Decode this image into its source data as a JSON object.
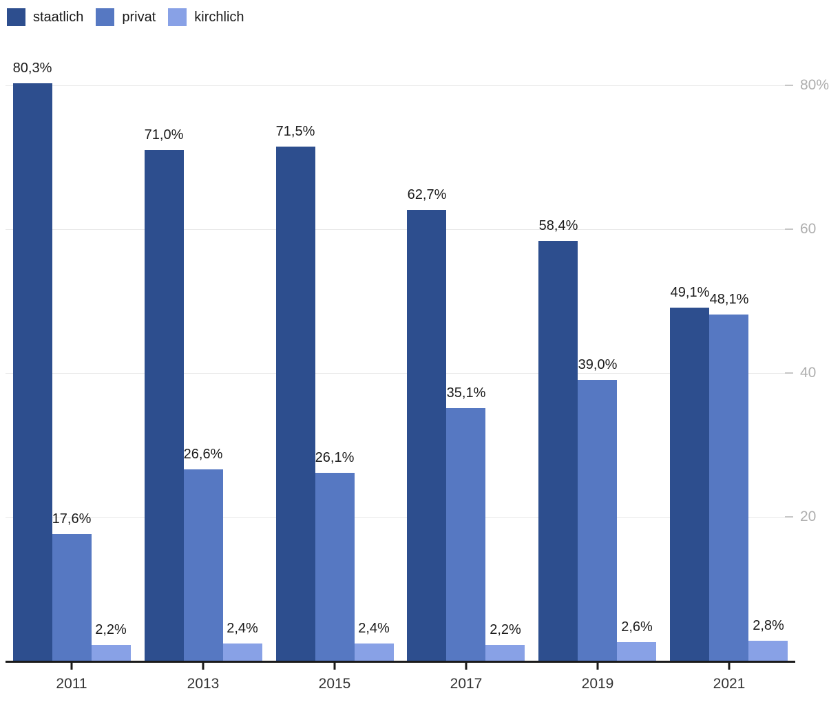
{
  "chart_data": {
    "type": "bar",
    "title": "",
    "xlabel": "",
    "ylabel": "",
    "categories": [
      "2011",
      "2013",
      "2015",
      "2017",
      "2019",
      "2021"
    ],
    "series": [
      {
        "name": "staatlich",
        "color": "#2d4e8e",
        "values": [
          80.3,
          71.0,
          71.5,
          62.7,
          58.4,
          49.1
        ],
        "labels": [
          "80,3%",
          "71,0%",
          "71,5%",
          "62,7%",
          "58,4%",
          "49,1%"
        ]
      },
      {
        "name": "privat",
        "color": "#5678c2",
        "values": [
          17.6,
          26.6,
          26.1,
          35.1,
          39.0,
          48.1
        ],
        "labels": [
          "17,6%",
          "26,6%",
          "26,1%",
          "35,1%",
          "39,0%",
          "48,1%"
        ]
      },
      {
        "name": "kirchlich",
        "color": "#88a1e6",
        "values": [
          2.2,
          2.4,
          2.4,
          2.2,
          2.6,
          2.8
        ],
        "labels": [
          "2,2%",
          "2,4%",
          "2,4%",
          "2,2%",
          "2,6%",
          "2,8%"
        ]
      }
    ],
    "y_axis": {
      "position": "right",
      "ticks": [
        20,
        40,
        60,
        80
      ],
      "tick_labels": [
        "20",
        "40",
        "60",
        "80%"
      ],
      "ylim": [
        0,
        86
      ],
      "grid": true
    },
    "legend_position": "top-left",
    "colors": {
      "background": "#ffffff",
      "grid_line": "#e9e9e9",
      "axis_line": "#1a1a1a",
      "y_tick_text": "#aeaeae",
      "x_tick_text": "#333333",
      "value_label_text": "#1a1a1a",
      "legend_text": "#1a1a1a"
    }
  }
}
